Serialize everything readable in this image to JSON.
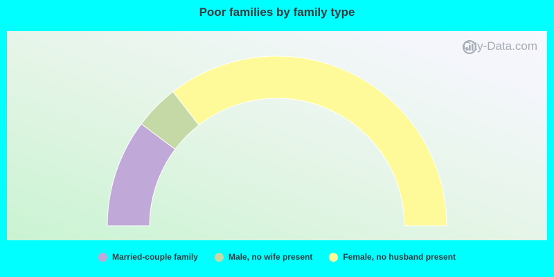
{
  "chart_data": {
    "type": "pie",
    "subtype": "semicircle-donut",
    "title": "Poor families by family type",
    "series": [
      {
        "name": "Married-couple family",
        "value": 20.5,
        "color": "#c0a8d8"
      },
      {
        "name": "Male, no wife present",
        "value": 8.5,
        "color": "#c5d9a7"
      },
      {
        "name": "Female, no husband present",
        "value": 71.0,
        "color": "#fffa99"
      }
    ],
    "legend_position": "bottom"
  },
  "watermark": {
    "text": "City-Data.com",
    "icon": "city-data-logo-icon"
  }
}
